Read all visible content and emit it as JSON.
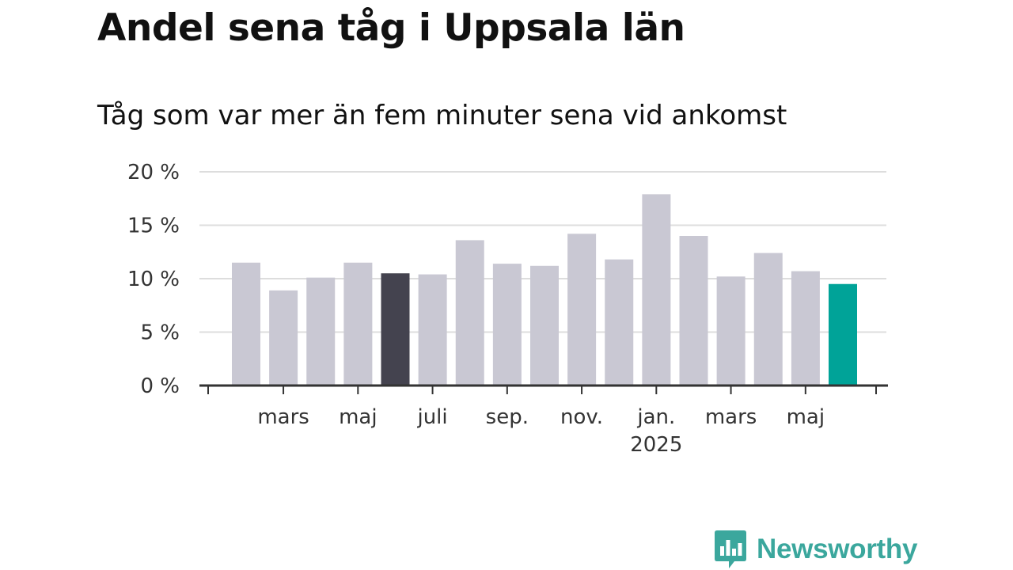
{
  "title": "Andel sena tåg i Uppsala län",
  "subtitle": "Tåg som var mer än fem minuter sena vid ankomst",
  "brand": {
    "name": "Newsworthy",
    "logo_icon": "bar-chart-speech-bubble-icon",
    "color": "#3ba79d"
  },
  "chart_data": {
    "type": "bar",
    "title": "Andel sena tåg i Uppsala län",
    "subtitle": "Tåg som var mer än fem minuter sena vid ankomst",
    "xlabel": "",
    "ylabel": "",
    "ylim": [
      0,
      20
    ],
    "grid": true,
    "legend": "none",
    "y_ticks": [
      {
        "value": 0,
        "label": "0 %"
      },
      {
        "value": 5,
        "label": "5 %"
      },
      {
        "value": 10,
        "label": "10 %"
      },
      {
        "value": 15,
        "label": "15 %"
      },
      {
        "value": 20,
        "label": "20 %"
      }
    ],
    "x_ticks": [
      {
        "bar_index": 1,
        "label": "mars",
        "sublabel": ""
      },
      {
        "bar_index": 3,
        "label": "maj",
        "sublabel": ""
      },
      {
        "bar_index": 5,
        "label": "juli",
        "sublabel": ""
      },
      {
        "bar_index": 7,
        "label": "sep.",
        "sublabel": ""
      },
      {
        "bar_index": 9,
        "label": "nov.",
        "sublabel": ""
      },
      {
        "bar_index": 11,
        "label": "jan.",
        "sublabel": "2025"
      },
      {
        "bar_index": 13,
        "label": "mars",
        "sublabel": ""
      },
      {
        "bar_index": 15,
        "label": "maj",
        "sublabel": ""
      }
    ],
    "categories": [
      "2024-02",
      "2024-03",
      "2024-04",
      "2024-05",
      "2024-06",
      "2024-07",
      "2024-08",
      "2024-09",
      "2024-10",
      "2024-11",
      "2024-12",
      "2025-01",
      "2025-02",
      "2025-03",
      "2025-04",
      "2025-05",
      "2025-06"
    ],
    "values": [
      11.5,
      8.9,
      10.1,
      11.5,
      10.5,
      10.4,
      13.6,
      11.4,
      11.2,
      14.2,
      11.8,
      17.9,
      14.0,
      10.2,
      12.4,
      10.7,
      9.5
    ],
    "bar_colors": [
      "#c9c8d3",
      "#c9c8d3",
      "#c9c8d3",
      "#c9c8d3",
      "#44434f",
      "#c9c8d3",
      "#c9c8d3",
      "#c9c8d3",
      "#c9c8d3",
      "#c9c8d3",
      "#c9c8d3",
      "#c9c8d3",
      "#c9c8d3",
      "#c9c8d3",
      "#c9c8d3",
      "#c9c8d3",
      "#00a398"
    ],
    "colors": {
      "default_bar": "#c9c8d3",
      "highlight_bar": "#44434f",
      "latest_bar": "#00a398",
      "gridline": "#dddddd",
      "axis": "#333333"
    }
  }
}
